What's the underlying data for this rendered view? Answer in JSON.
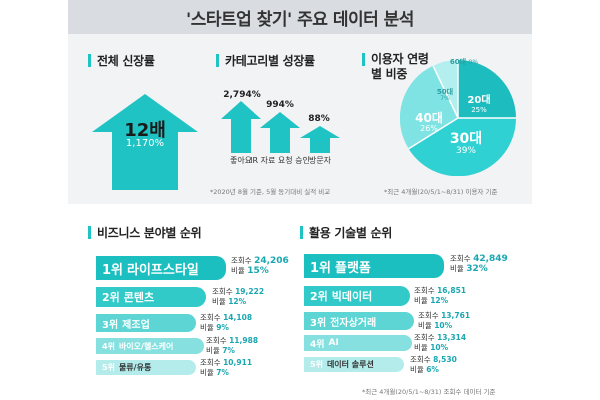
{
  "header": {
    "title": "'스타트업 찾기' 주요 데이터 분석"
  },
  "overall": {
    "heading": "전체 신장률",
    "value": "12배",
    "percent": "1,170%"
  },
  "category": {
    "heading": "카테고리별 성장률",
    "items": [
      {
        "percent": "2,794%",
        "label": "좋아요"
      },
      {
        "percent": "994%",
        "label": "IR 자료 요청 승인"
      },
      {
        "percent": "88%",
        "label": "방문자"
      }
    ],
    "note": "*2020년 8월 기준, 5월 동기대비 실적 비교"
  },
  "age": {
    "heading": "이용자 연령별 비중",
    "slices": [
      {
        "name": "20대",
        "percent": "25%",
        "value": 25,
        "color": "#1dbdbf"
      },
      {
        "name": "30대",
        "percent": "39%",
        "value": 39,
        "color": "#2fd1d3"
      },
      {
        "name": "40대",
        "percent": "26%",
        "value": 26,
        "color": "#7fe3e3"
      },
      {
        "name": "50대",
        "percent": "7%",
        "value": 7,
        "color": "#b3efee"
      },
      {
        "name": "60대",
        "percent": "0%",
        "value": 0,
        "color": "#ddf7f7"
      }
    ],
    "note": "*최근 4개월(20/5/1~8/31) 이용자 기준"
  },
  "business": {
    "heading": "비즈니스 분야별 순위",
    "count_label": "조회수",
    "ratio_label": "비율",
    "items": [
      {
        "rank": "1위",
        "name": "라이프스타일",
        "count": "24,206",
        "ratio": "15%"
      },
      {
        "rank": "2위",
        "name": "콘텐츠",
        "count": "19,222",
        "ratio": "12%"
      },
      {
        "rank": "3위",
        "name": "제조업",
        "count": "14,108",
        "ratio": "9%"
      },
      {
        "rank": "4위",
        "name": "바이오/헬스케어",
        "count": "11,988",
        "ratio": "7%"
      },
      {
        "rank": "5위",
        "name": "물류/유통",
        "count": "10,911",
        "ratio": "7%"
      }
    ]
  },
  "tech": {
    "heading": "활용 기술별 순위",
    "count_label": "조회수",
    "ratio_label": "비율",
    "items": [
      {
        "rank": "1위",
        "name": "플랫폼",
        "count": "42,849",
        "ratio": "32%"
      },
      {
        "rank": "2위",
        "name": "빅데이터",
        "count": "16,851",
        "ratio": "12%"
      },
      {
        "rank": "3위",
        "name": "전자상거래",
        "count": "13,761",
        "ratio": "10%"
      },
      {
        "rank": "4위",
        "name": "AI",
        "count": "13,314",
        "ratio": "10%"
      },
      {
        "rank": "5위",
        "name": "데이터 솔루션",
        "count": "8,530",
        "ratio": "6%"
      }
    ],
    "note": "*최근 4개월(20/5/1~8/31) 조회수 데이터 기준"
  },
  "colors": {
    "accent": "#1fc3c4",
    "rank1": "#1cbfc0",
    "rank2": "#32c9c9",
    "rank3": "#5cd5d4",
    "rank4": "#86e0df",
    "rank5": "#b4ecec"
  }
}
